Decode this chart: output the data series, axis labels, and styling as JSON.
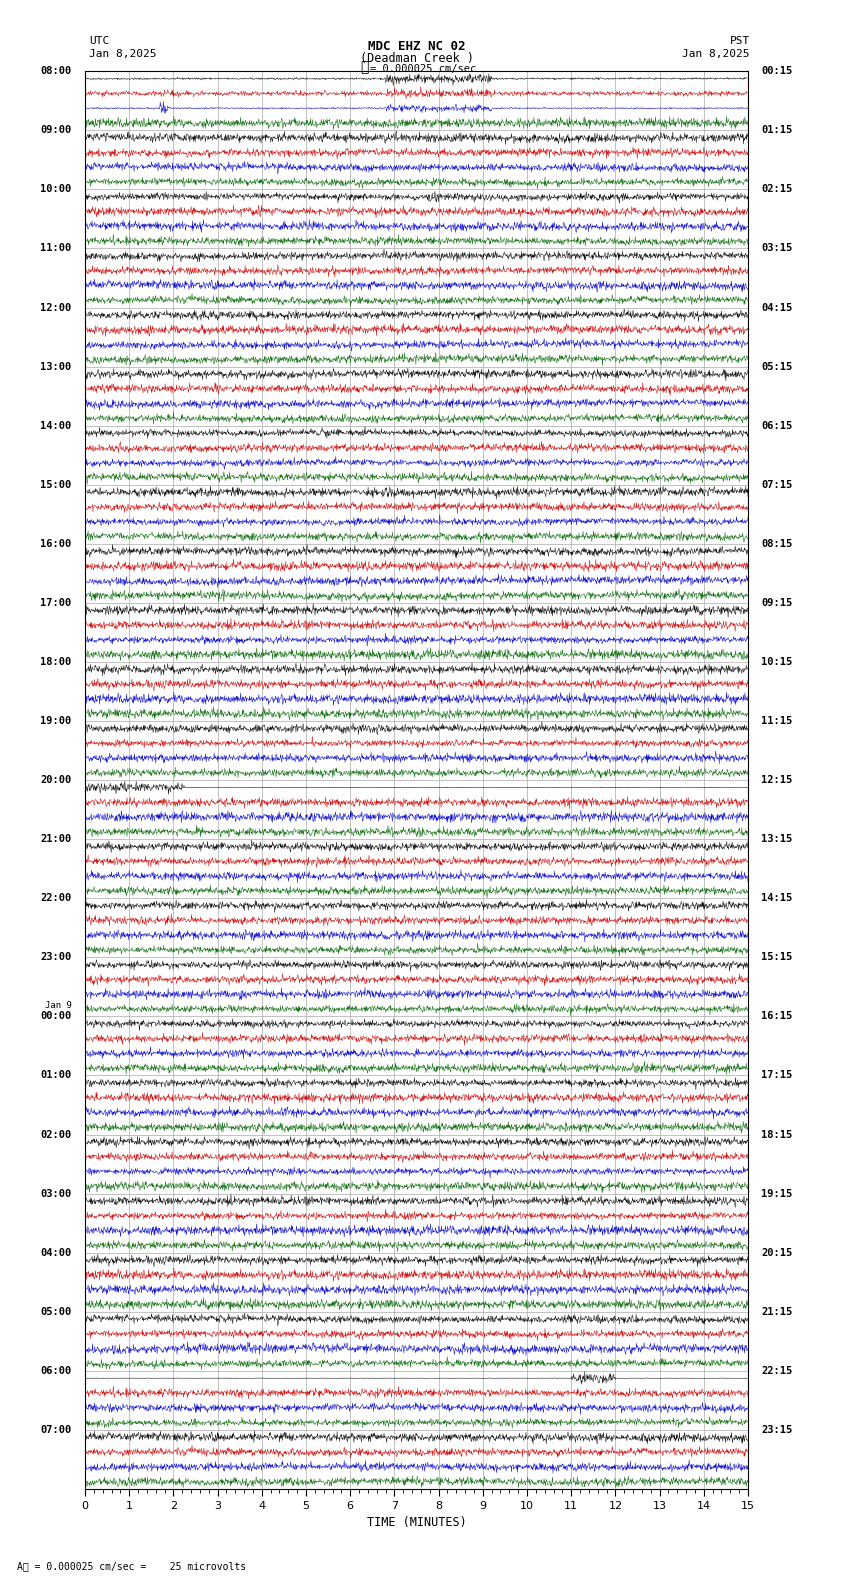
{
  "title_line1": "MDC EHZ NC 02",
  "title_line2": "(Deadman Creek )",
  "scale_label": "= 0.000025 cm/sec",
  "utc_label": "UTC",
  "pst_label": "PST",
  "date_left": "Jan 8,2025",
  "date_right": "Jan 8,2025",
  "xlabel": "TIME (MINUTES)",
  "bottom_note": "= 0.000025 cm/sec =    25 microvolts",
  "xlim": [
    0,
    15
  ],
  "xticks": [
    0,
    1,
    2,
    3,
    4,
    5,
    6,
    7,
    8,
    9,
    10,
    11,
    12,
    13,
    14,
    15
  ],
  "bg_color": "#ffffff",
  "grid_color": "#aaaaaa",
  "trace_colors": [
    "#000000",
    "#cc0000",
    "#0000cc",
    "#006600"
  ],
  "utc_times": [
    "08:00",
    "09:00",
    "10:00",
    "11:00",
    "12:00",
    "13:00",
    "14:00",
    "15:00",
    "16:00",
    "17:00",
    "18:00",
    "19:00",
    "20:00",
    "21:00",
    "22:00",
    "23:00",
    "Jan 9\n00:00",
    "01:00",
    "02:00",
    "03:00",
    "04:00",
    "05:00",
    "06:00",
    "07:00"
  ],
  "pst_times": [
    "00:15",
    "01:15",
    "02:15",
    "03:15",
    "04:15",
    "05:15",
    "06:15",
    "07:15",
    "08:15",
    "09:15",
    "10:15",
    "11:15",
    "12:15",
    "13:15",
    "14:15",
    "15:15",
    "16:15",
    "17:15",
    "18:15",
    "19:15",
    "20:15",
    "21:15",
    "22:15",
    "23:15"
  ],
  "num_rows": 24,
  "traces_per_row": 4,
  "noise_seed": 42
}
